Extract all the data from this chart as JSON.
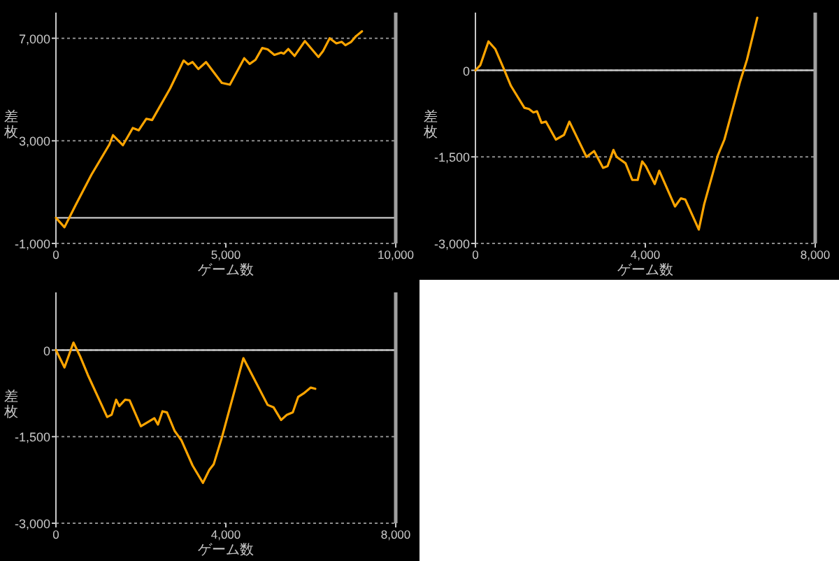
{
  "chart_data": [
    {
      "type": "line",
      "xlabel": "ゲーム数",
      "ylabel": "差枚",
      "xlim": [
        0,
        10000
      ],
      "ylim": [
        -1000,
        8000
      ],
      "xticks": [
        {
          "value": 0,
          "label": "0"
        },
        {
          "value": 5000,
          "label": "5,000"
        },
        {
          "value": 10000,
          "label": "10,000"
        }
      ],
      "yticks": [
        {
          "value": -1000,
          "label": "-1,000"
        },
        {
          "value": 3000,
          "label": "3,000"
        },
        {
          "value": 7000,
          "label": "7,000"
        }
      ],
      "grid": "y",
      "ref_lines": [
        {
          "axis": "y",
          "value": 0,
          "color": "#c8c8c8",
          "line_style": "solid"
        }
      ],
      "series": [
        {
          "color": "#ffa500",
          "x": [
            0,
            251,
            582,
            1045,
            1574,
            1680,
            1971,
            2262,
            2434,
            2659,
            2831,
            3360,
            3757,
            3889,
            4021,
            4193,
            4418,
            4881,
            5119,
            5542,
            5701,
            5873,
            6071,
            6230,
            6429,
            6627,
            6706,
            6839,
            7024,
            7328,
            7725,
            7857,
            8056,
            8254,
            8413,
            8519,
            8690,
            8823,
            9008
          ],
          "values": [
            0,
            -370,
            500,
            1680,
            2860,
            3220,
            2830,
            3500,
            3410,
            3860,
            3810,
            5040,
            6130,
            5980,
            6070,
            5800,
            6070,
            5260,
            5190,
            6220,
            6000,
            6160,
            6620,
            6570,
            6350,
            6440,
            6400,
            6580,
            6310,
            6890,
            6270,
            6490,
            7000,
            6800,
            6860,
            6730,
            6860,
            7070,
            7270
          ]
        }
      ]
    },
    {
      "type": "line",
      "xlabel": "ゲーム数",
      "ylabel": "差枚",
      "xlim": [
        0,
        8000
      ],
      "ylim": [
        -3000,
        1000
      ],
      "xticks": [
        {
          "value": 0,
          "label": "0"
        },
        {
          "value": 4000,
          "label": "4,000"
        },
        {
          "value": 8000,
          "label": "8,000"
        }
      ],
      "yticks": [
        {
          "value": -3000,
          "label": "-3,000"
        },
        {
          "value": -1500,
          "label": "-1,500"
        },
        {
          "value": 0,
          "label": "0"
        }
      ],
      "grid": "y",
      "ref_lines": [
        {
          "axis": "y",
          "value": 0,
          "color": "#c8c8c8",
          "line_style": "solid"
        }
      ],
      "series": [
        {
          "color": "#ffa500",
          "x": [
            0,
            116,
            307,
            466,
            677,
            836,
            1153,
            1259,
            1365,
            1450,
            1556,
            1661,
            1894,
            2085,
            2212,
            2614,
            2794,
            3005,
            3111,
            3249,
            3323,
            3534,
            3693,
            3820,
            3926,
            4011,
            4222,
            4328,
            4698,
            4836,
            4942,
            5259,
            5386,
            5704,
            5862,
            6233,
            6392,
            6635
          ],
          "values": [
            0,
            90,
            500,
            370,
            10,
            -270,
            -650,
            -670,
            -730,
            -710,
            -910,
            -890,
            -1200,
            -1120,
            -890,
            -1500,
            -1400,
            -1690,
            -1660,
            -1380,
            -1500,
            -1610,
            -1900,
            -1900,
            -1580,
            -1660,
            -1970,
            -1740,
            -2360,
            -2220,
            -2240,
            -2760,
            -2320,
            -1480,
            -1200,
            -190,
            180,
            910
          ]
        }
      ]
    },
    {
      "type": "line",
      "xlabel": "ゲーム数",
      "ylabel": "差枚",
      "xlim": [
        0,
        8000
      ],
      "ylim": [
        -3000,
        1000
      ],
      "xticks": [
        {
          "value": 0,
          "label": "0"
        },
        {
          "value": 4000,
          "label": "4,000"
        },
        {
          "value": 8000,
          "label": "8,000"
        }
      ],
      "yticks": [
        {
          "value": -3000,
          "label": "-3,000"
        },
        {
          "value": -1500,
          "label": "-1,500"
        },
        {
          "value": 0,
          "label": "0"
        }
      ],
      "grid": "y",
      "ref_lines": [
        {
          "axis": "y",
          "value": 0,
          "color": "#c8c8c8",
          "line_style": "solid"
        }
      ],
      "series": [
        {
          "color": "#ffa500",
          "x": [
            0,
            201,
            413,
            572,
            751,
            1206,
            1312,
            1418,
            1492,
            1630,
            1735,
            2000,
            2317,
            2402,
            2508,
            2614,
            2794,
            2952,
            3217,
            3460,
            3608,
            3714,
            3905,
            4413,
            4646,
            4984,
            5122,
            5302,
            5439,
            5577,
            5704,
            5831,
            6000,
            6106
          ],
          "values": [
            0,
            -300,
            130,
            -110,
            -430,
            -1160,
            -1120,
            -860,
            -970,
            -860,
            -870,
            -1320,
            -1180,
            -1290,
            -1060,
            -1080,
            -1400,
            -1560,
            -2000,
            -2300,
            -2080,
            -1980,
            -1520,
            -140,
            -470,
            -950,
            -990,
            -1210,
            -1120,
            -1080,
            -810,
            -750,
            -650,
            -670
          ]
        }
      ]
    }
  ]
}
